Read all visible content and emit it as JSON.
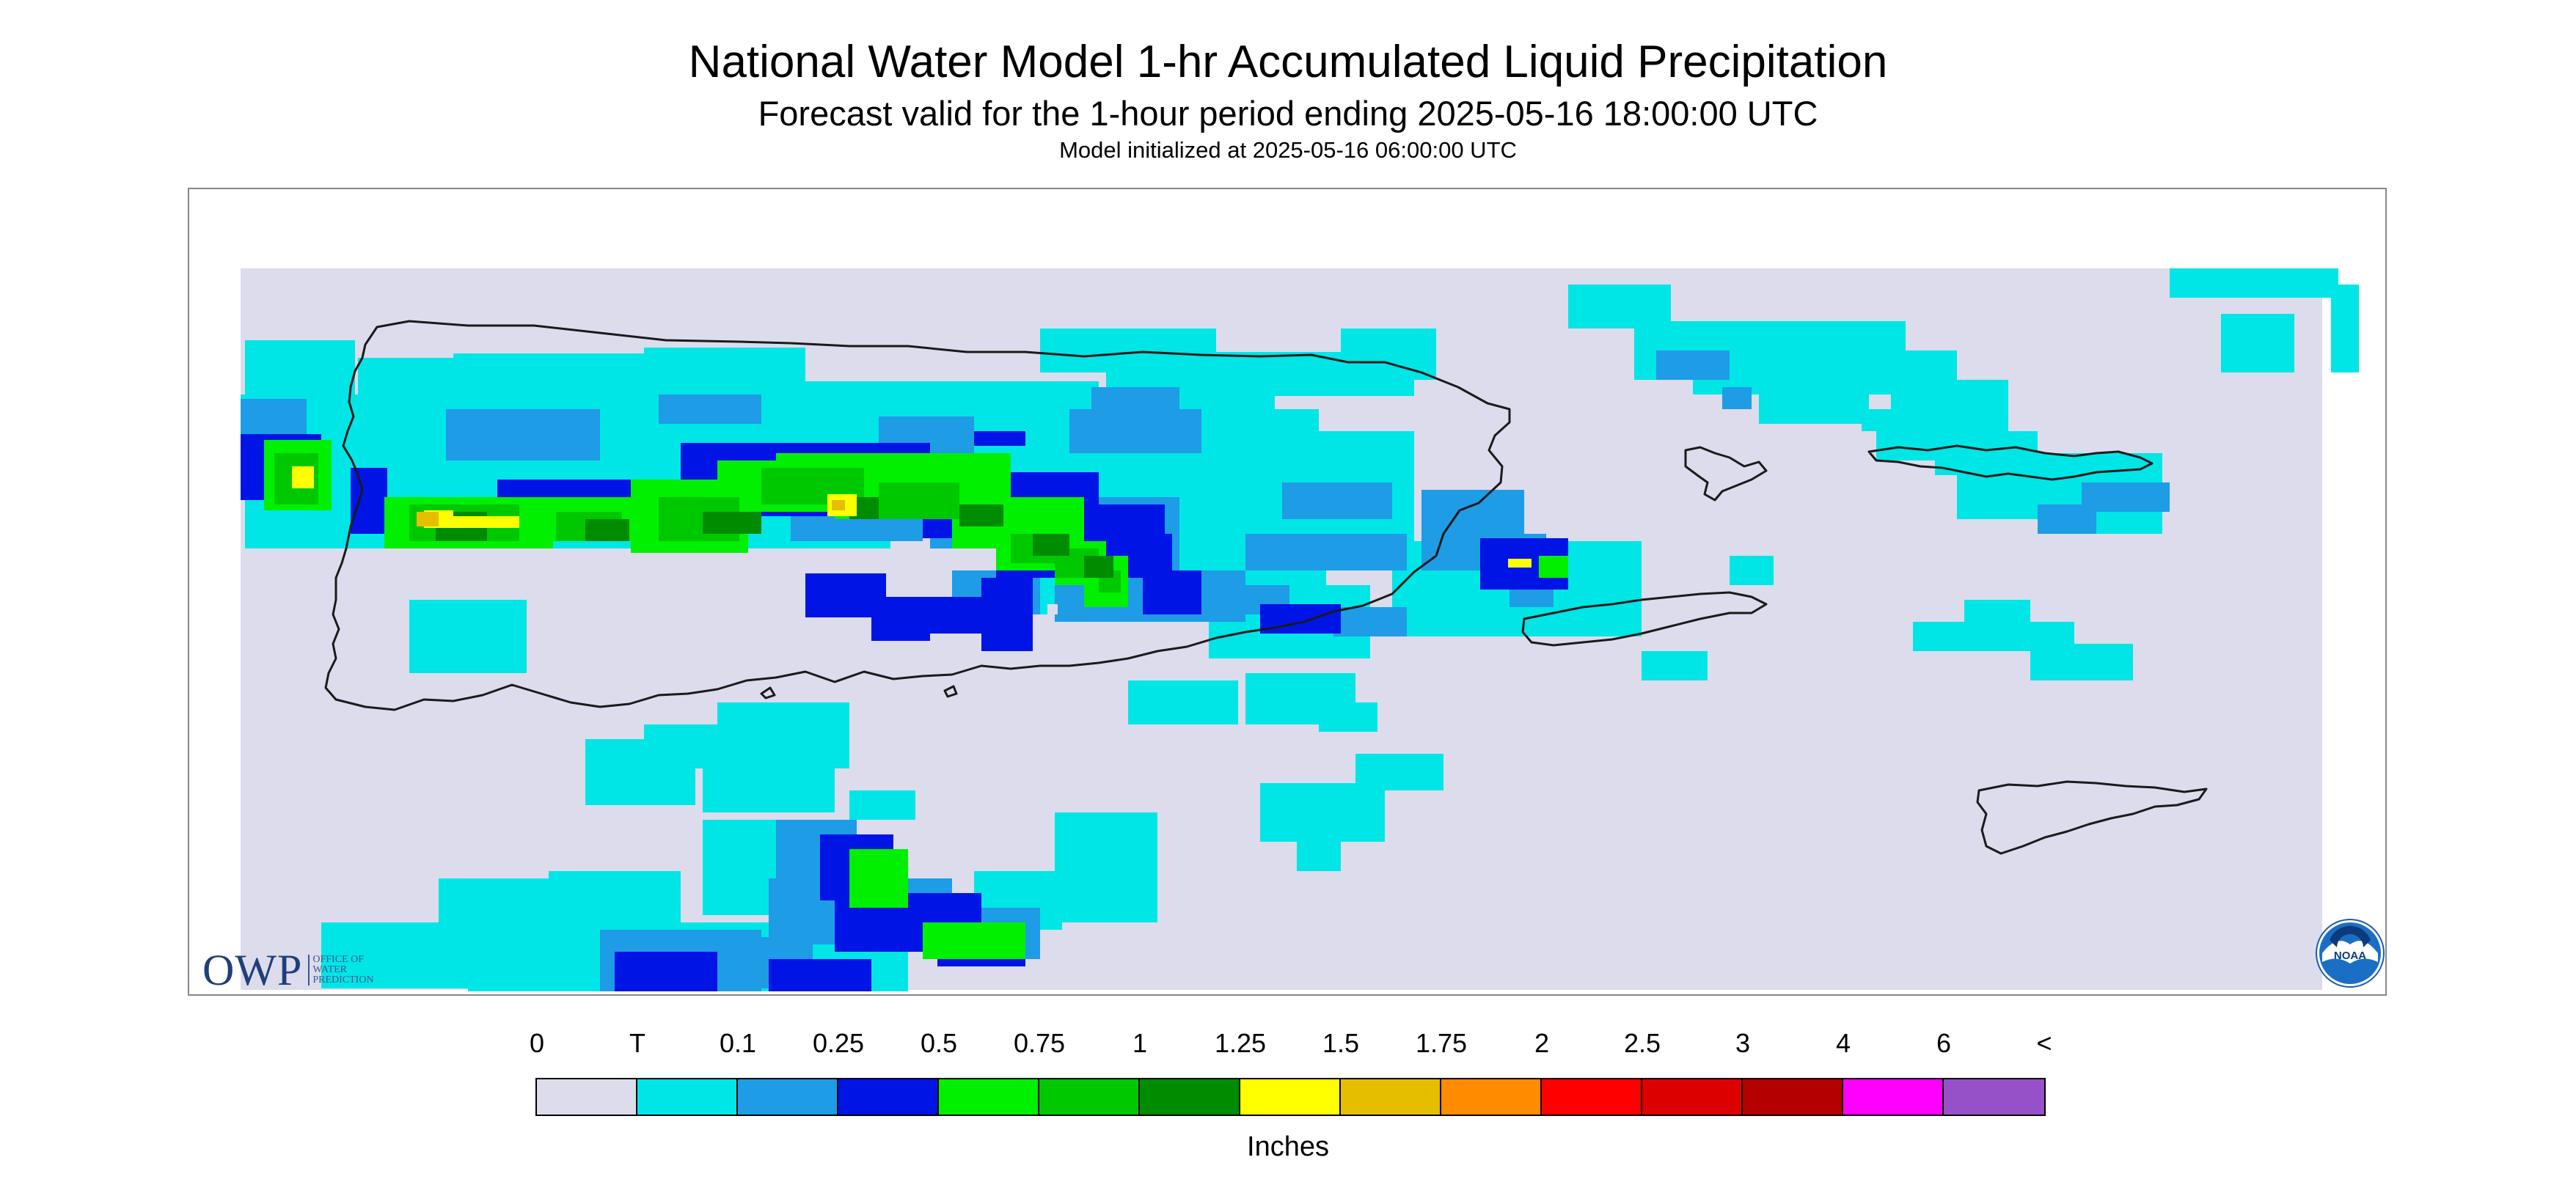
{
  "header": {
    "title": "National Water Model 1-hr Accumulated Liquid Precipitation",
    "subtitle": "Forecast valid for the 1-hour period ending 2025-05-16 18:00:00 UTC",
    "initialized": "Model initialized at 2025-05-16 06:00:00 UTC"
  },
  "map": {
    "region": "Puerto Rico and U.S. Virgin Islands",
    "background_color": "#dcdcec",
    "coastline_color": "#1a1a1a"
  },
  "logos": {
    "owp": {
      "letters": "OWP",
      "line1": "OFFICE OF",
      "line2": "WATER",
      "line3": "PREDICTION"
    },
    "noaa": {
      "text": "NOAA",
      "icon": "noaa-seal-icon"
    }
  },
  "legend": {
    "labels": [
      "0",
      "T",
      "0.1",
      "0.25",
      "0.5",
      "0.75",
      "1",
      "1.25",
      "1.5",
      "1.75",
      "2",
      "2.5",
      "3",
      "4",
      "6",
      "<"
    ],
    "colors": [
      "#dcdcec",
      "#00e6e6",
      "#1e9ce6",
      "#0014e6",
      "#00f000",
      "#00c800",
      "#008c00",
      "#ffff00",
      "#e6be00",
      "#ff8c00",
      "#ff0000",
      "#dc0000",
      "#b40000",
      "#ff00ff",
      "#9650c8"
    ],
    "units": "Inches"
  }
}
